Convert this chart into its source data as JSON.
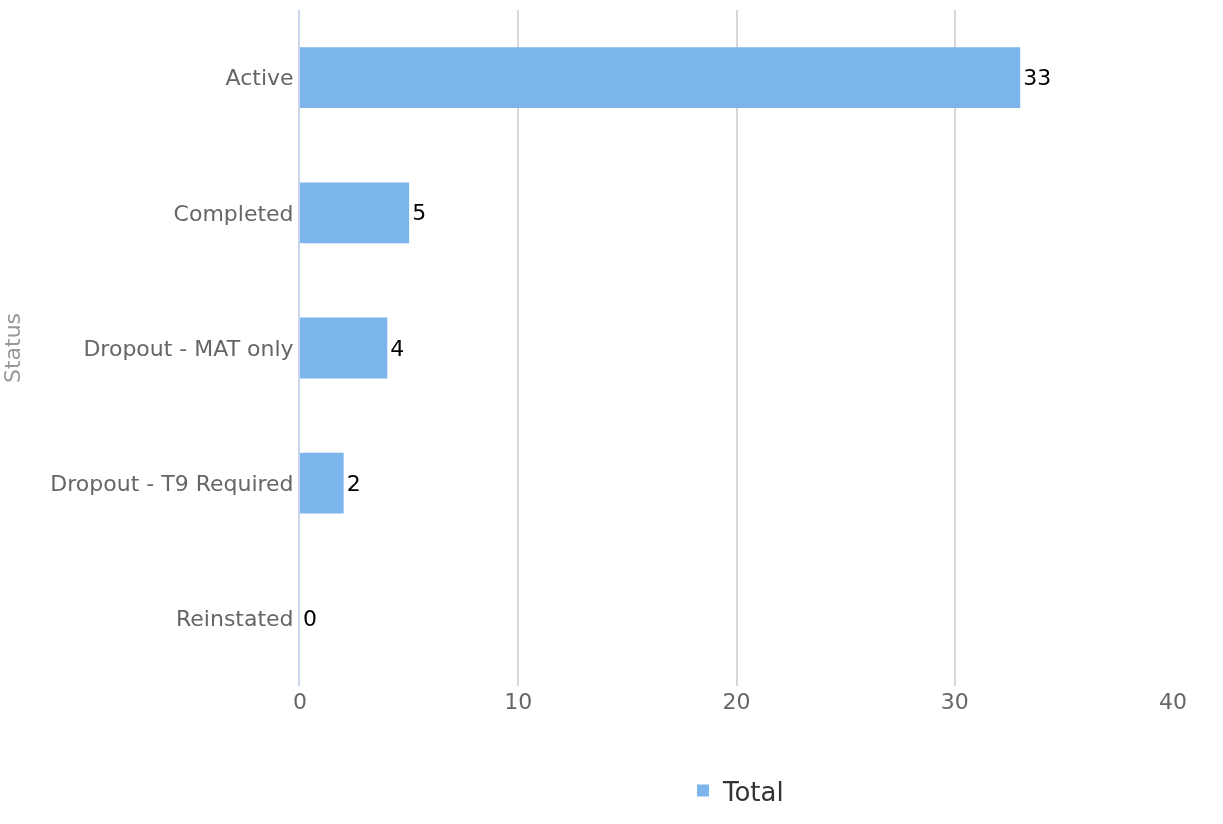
{
  "chart_data": {
    "type": "bar",
    "orientation": "horizontal",
    "ylabel": "Status",
    "categories": [
      "Active",
      "Completed",
      "Dropout - MAT only",
      "Dropout - T9 Required",
      "Reinstated"
    ],
    "series": [
      {
        "name": "Total",
        "color": "#7cb5ec",
        "values": [
          33,
          5,
          4,
          2,
          0
        ]
      }
    ],
    "xlim": [
      0,
      40
    ],
    "xticks": [
      0,
      10,
      20,
      30,
      40
    ],
    "grid": "x",
    "legend": "bottom",
    "data_labels": true
  }
}
